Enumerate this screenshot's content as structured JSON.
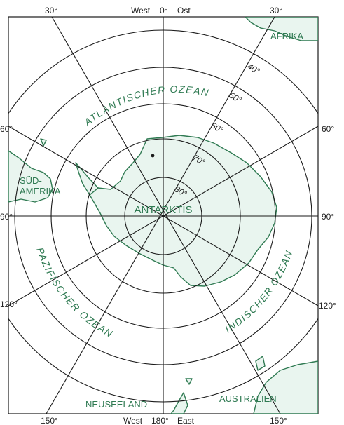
{
  "map": {
    "top_labels": {
      "left": "30°",
      "center_west": "West",
      "center_0": "0°",
      "center_ost": "Ost",
      "right": "30°"
    },
    "bottom_labels": {
      "left": "150°",
      "center_west": "West",
      "center_180": "180°",
      "center_east": "East",
      "right": "150°"
    },
    "side_labels": {
      "left_60": "60°",
      "left_90": "90°",
      "left_120": "120°",
      "right_60": "60°",
      "right_90": "90°",
      "right_120": "120°"
    },
    "latitudes": {
      "l40": "40°",
      "l50": "50°",
      "l60": "60°",
      "l70": "70°",
      "l80": "80°"
    },
    "regions": {
      "antarctica": "ANTARKTIS",
      "africa": "AFRIKA",
      "south_america_1": "SÜD-",
      "south_america_2": "AMERIKA",
      "australia": "AUSTRALIEN",
      "new_zealand": "NEUSEELAND"
    },
    "oceans": {
      "atlantic": "ATLANTISCHER OZEAN",
      "pacific": "PAZIFISCHER OZEAN",
      "indian": "INDISCHER OZEAN"
    },
    "colors": {
      "land_fill": "#e9f5ef",
      "coast_line": "#2f7a52",
      "grid_line": "#1a1a1a",
      "label_green": "#2f7a52"
    }
  }
}
